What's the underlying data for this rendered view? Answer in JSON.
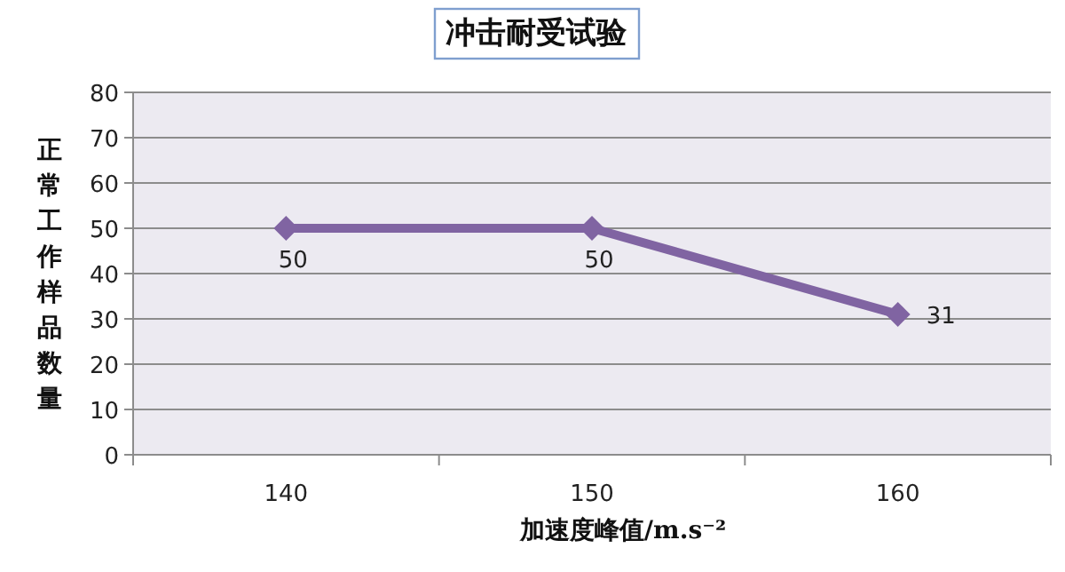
{
  "chart_data": {
    "type": "line",
    "title": "冲击耐受试验",
    "xlabel": "加速度峰值/m.s⁻²",
    "ylabel": "正常工作样品数量",
    "categories": [
      "140",
      "150",
      "160"
    ],
    "series": [
      {
        "color": "#8064a2",
        "values": [
          50,
          50,
          31
        ]
      }
    ],
    "ylim": [
      0,
      80
    ],
    "yticks": [
      0,
      10,
      20,
      30,
      40,
      50,
      60,
      70,
      80
    ],
    "grid": "y",
    "marker": "diamond",
    "line_style": "solid",
    "data_labels": true
  }
}
